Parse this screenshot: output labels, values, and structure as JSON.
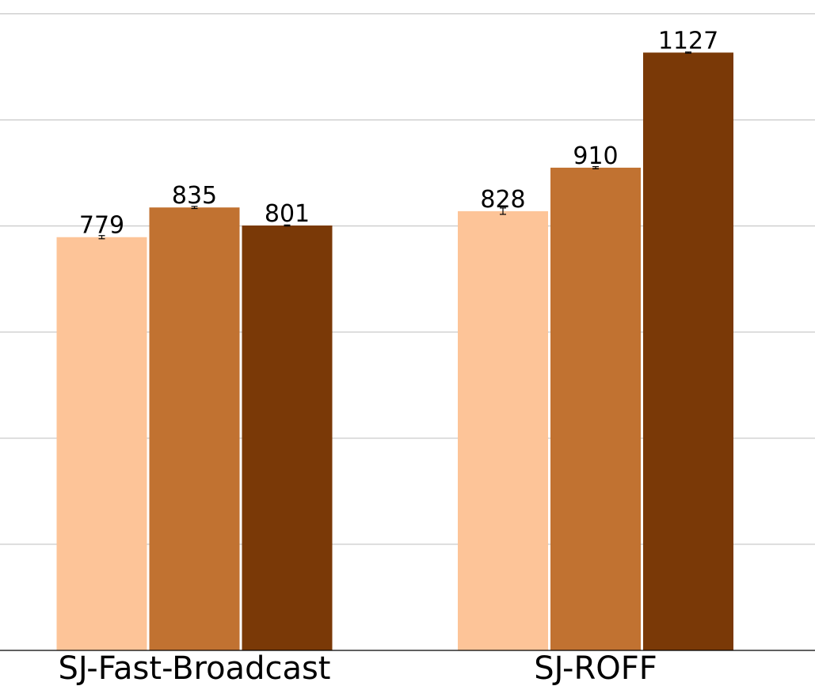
{
  "chart_data": {
    "type": "bar",
    "categories": [
      "SJ-Fast-Broadcast",
      "SJ-ROFF"
    ],
    "series": [
      {
        "values": [
          779,
          828
        ],
        "color": "#fdc498",
        "errors": [
          3,
          6
        ]
      },
      {
        "values": [
          835,
          910
        ],
        "color": "#c17231",
        "errors": [
          2,
          2
        ]
      },
      {
        "values": [
          801,
          1127
        ],
        "color": "#7a3907",
        "errors": [
          1,
          1
        ]
      }
    ],
    "value_labels": [
      [
        "779",
        "828"
      ],
      [
        "835",
        "910"
      ],
      [
        "801",
        "1127"
      ]
    ],
    "ylim": [
      0,
      1200
    ],
    "yticks": [
      0,
      200,
      400,
      600,
      800,
      1000,
      1200
    ],
    "grid": true,
    "legend": "none"
  }
}
